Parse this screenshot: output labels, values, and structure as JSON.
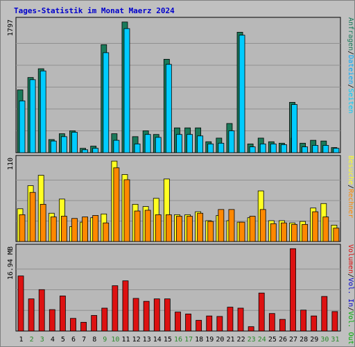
{
  "chart_data": {
    "type": "bar",
    "title": "Tages-Statistik im Monat Maerz 2024",
    "colors": {
      "background": "#c0c0c0",
      "plot_bg": "#b8b8b8",
      "title": "#0000cc",
      "anfragen": "#1a7a5a",
      "dateien": "#00ccff",
      "seiten": "#0055ff",
      "besuche": "#ffff22",
      "rechner": "#ff8800",
      "volumen": "#dd1111",
      "x_label_weekday": "#000000",
      "x_label_weekend": "#2a8a2a",
      "right_sep": "#000000"
    },
    "categories": [
      "1",
      "2",
      "3",
      "4",
      "5",
      "6",
      "7",
      "8",
      "9",
      "10",
      "11",
      "12",
      "13",
      "14",
      "15",
      "16",
      "17",
      "18",
      "19",
      "20",
      "21",
      "22",
      "23",
      "24",
      "25",
      "26",
      "27",
      "28",
      "29",
      "30",
      "31"
    ],
    "weekend_days": [
      2,
      3,
      9,
      10,
      16,
      17,
      23,
      24,
      30,
      31
    ],
    "panels": [
      {
        "id": "requests",
        "ymax_label": "1797",
        "ymax": 1797,
        "right_label": [
          {
            "text": "Anfragen",
            "color": "#1a7a5a"
          },
          {
            "text": "/",
            "color": "#000000"
          },
          {
            "text": "Dateien",
            "color": "#00aaff"
          },
          {
            "text": "/",
            "color": "#000000"
          },
          {
            "text": "Seiten",
            "color": "#00ccff"
          }
        ],
        "series": [
          {
            "name": "Anfragen",
            "values": [
              860,
              1030,
              1150,
              180,
              260,
              300,
              60,
              90,
              1480,
              260,
              1790,
              220,
              300,
              250,
              1280,
              340,
              340,
              340,
              150,
              200,
              400,
              1650,
              120,
              200,
              150,
              130,
              690,
              130,
              170,
              160,
              70
            ]
          },
          {
            "name": "Dateien",
            "values": [
              710,
              1000,
              1120,
              160,
              220,
              280,
              40,
              60,
              1370,
              170,
              1700,
              120,
              250,
              210,
              1210,
              250,
              250,
              230,
              120,
              130,
              300,
              1610,
              80,
              120,
              120,
              110,
              660,
              80,
              100,
              100,
              60
            ]
          },
          {
            "name": "Seiten",
            "values": [
              0,
              0,
              0,
              0,
              0,
              0,
              0,
              0,
              0,
              0,
              0,
              0,
              0,
              0,
              0,
              0,
              0,
              0,
              0,
              0,
              0,
              0,
              0,
              0,
              0,
              0,
              200,
              0,
              0,
              0,
              0
            ]
          }
        ]
      },
      {
        "id": "visits",
        "ymax_label": "110",
        "ymax": 110,
        "right_label": [
          {
            "text": "Besuche",
            "color": "#ffff22"
          },
          {
            "text": "/",
            "color": "#000000"
          },
          {
            "text": "Rechner",
            "color": "#ff8800"
          }
        ],
        "series": [
          {
            "name": "Besuche",
            "values": [
              44,
              75,
              89,
              38,
              57,
              20,
              26,
              32,
              37,
              108,
              90,
              50,
              47,
              58,
              84,
              36,
              36,
              40,
              28,
              35,
              28,
              26,
              32,
              68,
              28,
              28,
              25,
              27,
              45,
              51,
              22
            ]
          },
          {
            "name": "Rechner",
            "values": [
              36,
              66,
              50,
              33,
              34,
              31,
              33,
              35,
              25,
              99,
              83,
              41,
              42,
              36,
              36,
              34,
              34,
              38,
              27,
              43,
              43,
              26,
              34,
              43,
              24,
              25,
              23,
              23,
              40,
              33,
              18
            ]
          }
        ]
      },
      {
        "id": "volume",
        "ymax_label": "16.94 MB",
        "ymax": 16.94,
        "right_label": [
          {
            "text": "Volumen",
            "color": "#dd1111"
          },
          {
            "text": "/",
            "color": "#000000"
          },
          {
            "text": "Vol. In",
            "color": "#0000cc"
          },
          {
            "text": "/",
            "color": "#000000"
          },
          {
            "text": "Vol. Out",
            "color": "#00aa00"
          }
        ],
        "series": [
          {
            "name": "Volumen",
            "values": [
              11.3,
              6.6,
              8.5,
              4.4,
              7.2,
              2.6,
              1.8,
              3.2,
              4.7,
              9.3,
              10.3,
              6.7,
              6.1,
              6.6,
              6.6,
              3.9,
              3.5,
              2.2,
              3.1,
              3.0,
              4.9,
              4.7,
              0.9,
              7.8,
              3.6,
              2.4,
              16.9,
              4.3,
              3.1,
              7.1,
              4.0
            ]
          }
        ]
      }
    ]
  }
}
